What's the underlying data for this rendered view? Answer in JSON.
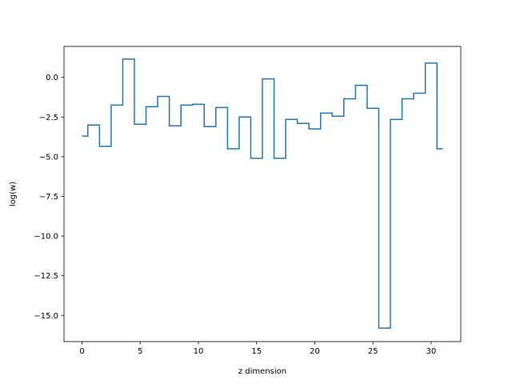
{
  "chart_data": {
    "type": "line",
    "drawstyle": "steps-mid",
    "xlabel": "z dimension",
    "ylabel": "log(w)",
    "x": [
      0,
      1,
      2,
      3,
      4,
      5,
      6,
      7,
      8,
      9,
      10,
      11,
      12,
      13,
      14,
      15,
      16,
      17,
      18,
      19,
      20,
      21,
      22,
      23,
      24,
      25,
      26,
      27,
      28,
      29,
      30,
      31
    ],
    "series": [
      {
        "color": "#1f77b4",
        "values": [
          -3.7,
          -3.0,
          -4.35,
          -1.75,
          1.15,
          -2.95,
          -1.85,
          -1.2,
          -3.05,
          -1.75,
          -1.7,
          -3.1,
          -1.9,
          -4.5,
          -2.5,
          -5.1,
          -0.1,
          -5.1,
          -2.65,
          -2.9,
          -3.25,
          -2.25,
          -2.45,
          -1.35,
          -0.5,
          -1.95,
          -15.8,
          -2.65,
          -1.35,
          -1.0,
          0.9,
          -4.5
        ]
      }
    ],
    "xlim": [
      -1.55,
      32.55
    ],
    "ylim": [
      -16.65,
      1.95
    ],
    "xticks": [
      0,
      5,
      10,
      15,
      20,
      25,
      30
    ],
    "yticks": [
      0.0,
      -2.5,
      -5.0,
      -7.5,
      -10.0,
      -12.5,
      -15.0
    ],
    "xtick_labels": [
      "0",
      "5",
      "10",
      "15",
      "20",
      "25",
      "30"
    ],
    "ytick_labels": [
      "0.0",
      "−2.5",
      "−5.0",
      "−7.5",
      "−10.0",
      "−12.5",
      "−15.0"
    ],
    "grid": false,
    "legend": false
  }
}
